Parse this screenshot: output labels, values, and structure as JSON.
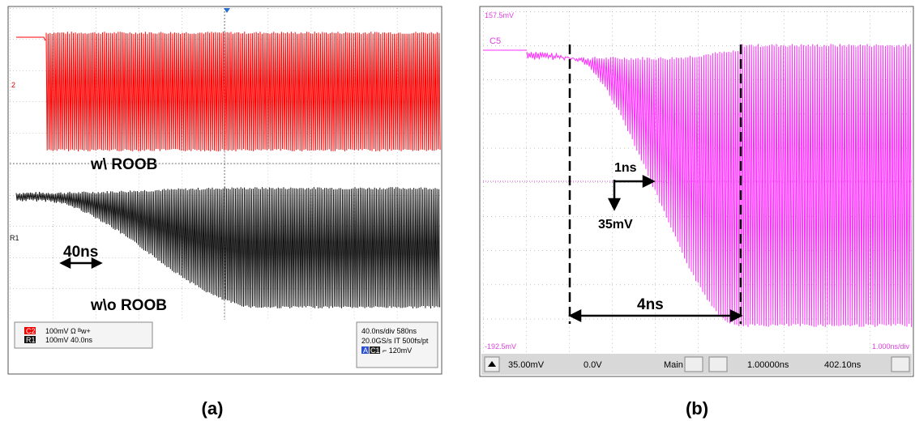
{
  "panel_a": {
    "caption": "(a)",
    "trace_marker": "2",
    "ref_marker": "R1",
    "label_with": "w\\ ROOB",
    "label_without": "w\\o ROOB",
    "span_label": "40ns",
    "status": {
      "ch_name": "C2",
      "ch_setting": "100mV Ω ᴮw+",
      "ref_name": "R1",
      "ref_setting": "100mV 40.0ns",
      "timebase": "40.0ns/div  580ns",
      "sampling": "20.0GS/s IT 500fs/pt",
      "trig_mode": "A",
      "trig_ch": "C1",
      "trig_level": "⌐ 120mV"
    }
  },
  "panel_b": {
    "caption": "(b)",
    "top_level": "157.5mV",
    "bottom_level": "-192.5mV",
    "channel": "C5",
    "timebase": "1.000ns/div",
    "scale_time": "1ns",
    "scale_volt": "35mV",
    "span_label": "4ns",
    "toolbar": {
      "volts_div": "35.00mV",
      "offset": "0.0V",
      "mode": "Main",
      "time_div": "1.00000ns",
      "position": "402.10ns"
    }
  }
}
